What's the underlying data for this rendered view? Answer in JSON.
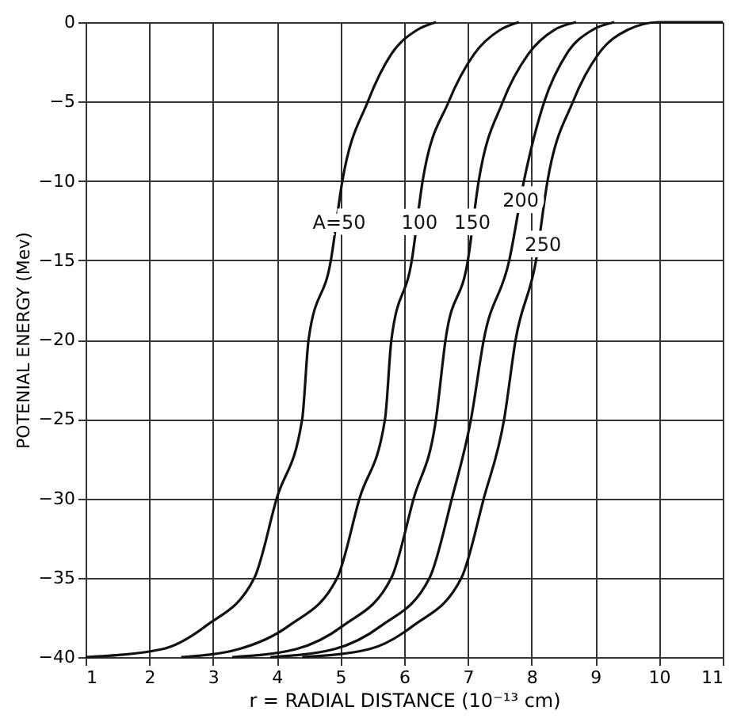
{
  "chart_data": {
    "type": "line",
    "xlabel": "r = RADIAL DISTANCE (10⁻¹³ cm)",
    "ylabel": "POTENIAL ENERGY (Mev)",
    "xlim": [
      1,
      11
    ],
    "xticks": [
      1,
      2,
      3,
      4,
      5,
      6,
      7,
      8,
      9,
      10,
      11
    ],
    "ylim": [
      -40,
      0
    ],
    "yticks": [
      0,
      -5,
      -10,
      -15,
      -20,
      -25,
      -30,
      -35,
      -40
    ],
    "grid": true,
    "marker": "none",
    "line_style": "solid",
    "series": [
      {
        "color": "#111111",
        "x": [
          1,
          2.2,
          2.9,
          3.65,
          4.0,
          4.4,
          4.5,
          4.85,
          5.03,
          5.43,
          5.8,
          6.2,
          6.5
        ],
        "values": [
          -40,
          -39.5,
          -38,
          -35,
          -30,
          -25,
          -20,
          -15,
          -10,
          -5,
          -2,
          -0.5,
          0
        ]
      },
      {
        "color": "#111111",
        "x": [
          2.5,
          3.4,
          4.2,
          4.95,
          5.3,
          5.7,
          5.8,
          6.12,
          6.29,
          6.7,
          7.1,
          7.5,
          7.8
        ],
        "values": [
          -40,
          -39.5,
          -38,
          -35,
          -30,
          -25,
          -20,
          -15,
          -10,
          -5,
          -2,
          -0.5,
          0
        ]
      },
      {
        "color": "#111111",
        "x": [
          3.3,
          4.3,
          5.05,
          5.8,
          6.15,
          6.5,
          6.65,
          7.0,
          7.17,
          7.55,
          7.95,
          8.35,
          8.7
        ],
        "values": [
          -40,
          -39.5,
          -38,
          -35,
          -30,
          -25,
          -20,
          -15,
          -10,
          -5,
          -2,
          -0.5,
          0
        ]
      },
      {
        "color": "#111111",
        "x": [
          3.9,
          4.9,
          5.65,
          6.4,
          6.75,
          7.05,
          7.25,
          7.65,
          7.88,
          8.2,
          8.55,
          8.95,
          9.3
        ],
        "values": [
          -40,
          -39.5,
          -38,
          -35,
          -30,
          -25,
          -20,
          -15,
          -10,
          -5,
          -2,
          -0.5,
          0
        ]
      },
      {
        "color": "#111111",
        "x": [
          4.4,
          5.45,
          6.15,
          6.9,
          7.25,
          7.57,
          7.75,
          8.07,
          8.25,
          8.65,
          9.05,
          9.5,
          10.0,
          11
        ],
        "values": [
          -40,
          -39.5,
          -38,
          -35,
          -30,
          -25,
          -20,
          -15,
          -10,
          -5,
          -2,
          -0.5,
          0,
          0
        ]
      }
    ],
    "annotations": [
      {
        "text": "A=50",
        "x": 4.98,
        "y": -12.6
      },
      {
        "text": "100",
        "x": 6.24,
        "y": -12.6
      },
      {
        "text": "150",
        "x": 7.07,
        "y": -12.6
      },
      {
        "text": "200",
        "x": 7.83,
        "y": -11.2
      },
      {
        "text": "250",
        "x": 8.18,
        "y": -14
      }
    ]
  }
}
